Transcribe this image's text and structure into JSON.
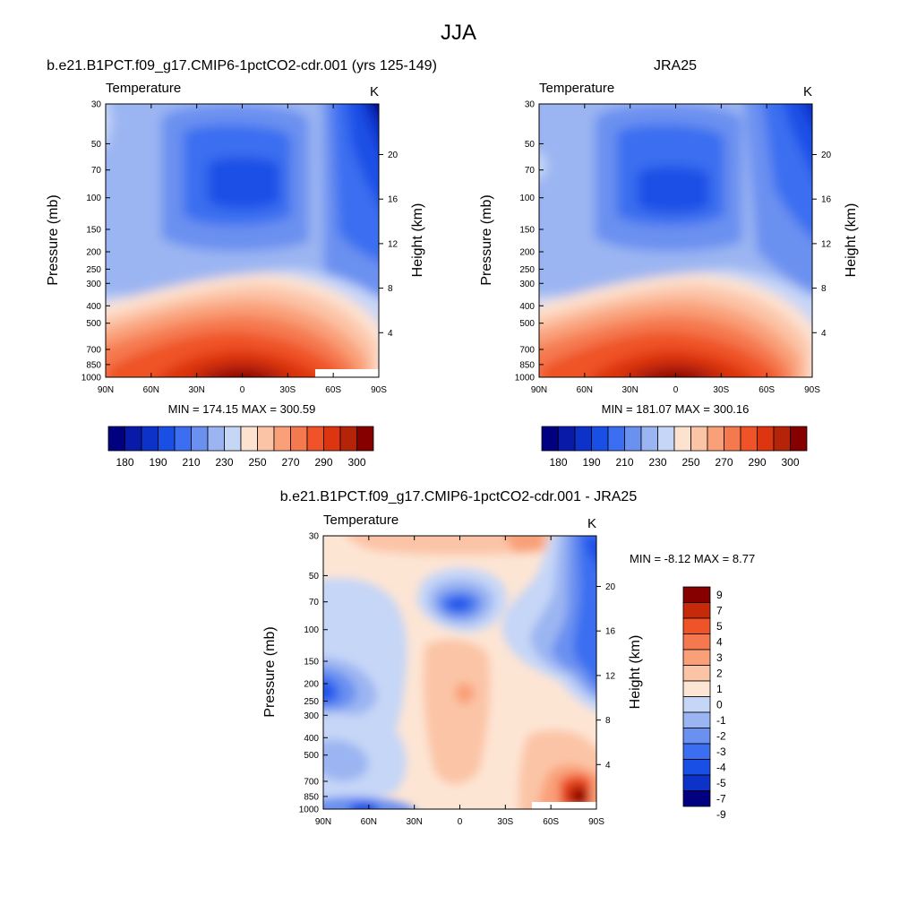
{
  "title": "JJA",
  "palettes": {
    "abs": [
      "#000080",
      "#0a1aa8",
      "#0d32c8",
      "#1a4fe6",
      "#3b6ef0",
      "#6a90f0",
      "#9bb5f2",
      "#c6d6f7",
      "#fde2d0",
      "#fcc4a7",
      "#f9a079",
      "#f5794f",
      "#ef5327",
      "#dd3510",
      "#b52408",
      "#870000"
    ],
    "diff": [
      "#000080",
      "#0d32c8",
      "#1a4fe6",
      "#3b6ef0",
      "#6a90f0",
      "#9bb5f2",
      "#c6d6f7",
      "#fde5d4",
      "#fbc4a6",
      "#f9a079",
      "#f5794f",
      "#ef5327",
      "#c62a08",
      "#870000"
    ]
  },
  "chart_data": [
    {
      "type": "contour",
      "name": "model",
      "title": "b.e21.B1PCT.f09_g17.CMIP6-1pctCO2-cdr.001 (yrs 125-149)",
      "left_label": "Temperature",
      "right_label": "K",
      "ylabel": "Pressure (mb)",
      "ylabel_right": "Height (km)",
      "x_ticks": [
        "90N",
        "60N",
        "30N",
        "0",
        "30S",
        "60S",
        "90S"
      ],
      "y_ticks": [
        "30",
        "50",
        "70",
        "100",
        "150",
        "200",
        "250",
        "300",
        "400",
        "500",
        "700",
        "850",
        "1000"
      ],
      "y_right_ticks": [
        "20",
        "16",
        "12",
        "8",
        "4"
      ],
      "stats": "MIN = 174.15  MAX = 300.59",
      "colorbar_labels": [
        "180",
        "190",
        "210",
        "230",
        "250",
        "270",
        "290",
        "300"
      ],
      "min": 174.15,
      "max": 300.59
    },
    {
      "type": "contour",
      "name": "obs",
      "title": "JRA25",
      "left_label": "Temperature",
      "right_label": "K",
      "ylabel": "Pressure (mb)",
      "ylabel_right": "Height (km)",
      "x_ticks": [
        "90N",
        "60N",
        "30N",
        "0",
        "30S",
        "60S",
        "90S"
      ],
      "y_ticks": [
        "30",
        "50",
        "70",
        "100",
        "150",
        "200",
        "250",
        "300",
        "400",
        "500",
        "700",
        "850",
        "1000"
      ],
      "y_right_ticks": [
        "20",
        "16",
        "12",
        "8",
        "4"
      ],
      "stats": "MIN = 181.07  MAX = 300.16",
      "colorbar_labels": [
        "180",
        "190",
        "210",
        "230",
        "250",
        "270",
        "290",
        "300"
      ],
      "min": 181.07,
      "max": 300.16
    },
    {
      "type": "contour",
      "name": "difference",
      "title": "b.e21.B1PCT.f09_g17.CMIP6-1pctCO2-cdr.001 - JRA25",
      "left_label": "Temperature",
      "right_label": "K",
      "ylabel": "Pressure (mb)",
      "ylabel_right": "Height (km)",
      "x_ticks": [
        "90N",
        "60N",
        "30N",
        "0",
        "30S",
        "60S",
        "90S"
      ],
      "y_ticks": [
        "30",
        "50",
        "70",
        "100",
        "150",
        "200",
        "250",
        "300",
        "400",
        "500",
        "700",
        "850",
        "1000"
      ],
      "y_right_ticks": [
        "20",
        "16",
        "12",
        "8",
        "4"
      ],
      "stats": "MIN =  -8.12  MAX =   8.77",
      "colorbar_labels": [
        "9",
        "7",
        "5",
        "4",
        "3",
        "2",
        "1",
        "0",
        "-1",
        "-2",
        "-3",
        "-4",
        "-5",
        "-7",
        "-9"
      ],
      "min": -8.12,
      "max": 8.77
    }
  ]
}
